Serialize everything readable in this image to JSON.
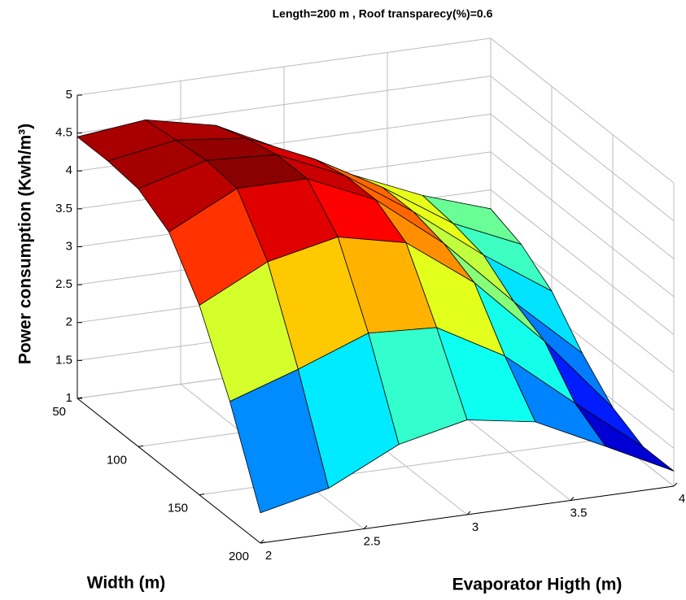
{
  "chart_data": {
    "type": "surface",
    "title": "Length=200 m , Roof transparecy(%)=0.6",
    "xlabel": "Evaporator Higth (m)",
    "ylabel": "Width (m)",
    "zlabel": "Power consumption (Kwh/m³)",
    "x": [
      2,
      2.33,
      2.67,
      3,
      3.33,
      3.67,
      4
    ],
    "y": [
      50,
      75,
      100,
      125,
      150,
      175,
      200
    ],
    "z": [
      [
        4.45,
        4.55,
        4.35,
        3.9,
        3.45,
        3.05,
        2.75
      ],
      [
        4.45,
        4.6,
        4.5,
        4.1,
        3.6,
        3.0,
        2.6
      ],
      [
        4.4,
        4.65,
        4.6,
        4.2,
        3.6,
        2.9,
        2.3
      ],
      [
        4.15,
        4.6,
        4.6,
        4.2,
        3.5,
        2.6,
        1.8
      ],
      [
        3.5,
        3.95,
        4.15,
        3.95,
        3.3,
        2.4,
        1.4
      ],
      [
        2.55,
        2.85,
        3.2,
        3.15,
        2.65,
        1.9,
        1.2
      ],
      [
        1.4,
        1.6,
        2.05,
        2.25,
        2.1,
        1.65,
        1.2
      ]
    ],
    "colormap": "jet",
    "xlim": [
      2,
      4
    ],
    "xticks": [
      2,
      2.5,
      3,
      3.5,
      4
    ],
    "ylim": [
      50,
      200
    ],
    "yticks": [
      50,
      100,
      150,
      200
    ],
    "zlim": [
      1,
      5
    ],
    "zticks": [
      1,
      1.5,
      2,
      2.5,
      3,
      3.5,
      4,
      4.5,
      5
    ],
    "grid": true
  }
}
